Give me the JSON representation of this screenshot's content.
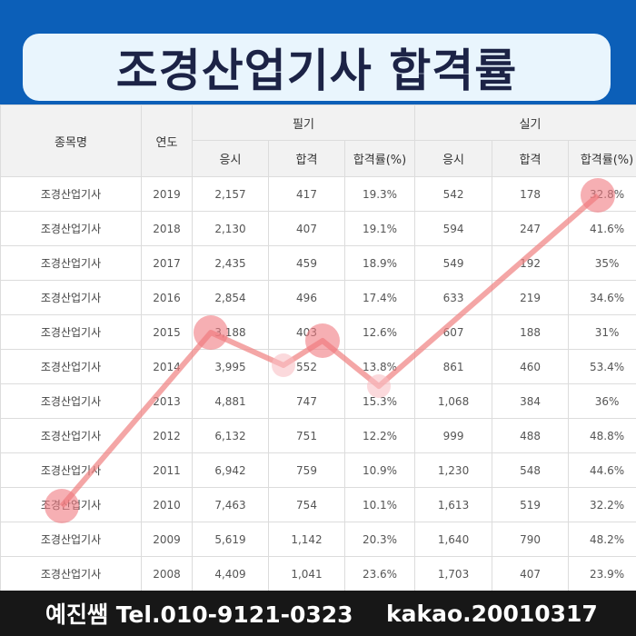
{
  "title": "조경산업기사 합격률",
  "table": {
    "col_name": "종목명",
    "col_year": "연도",
    "group_written": "필기",
    "group_practical": "실기",
    "sub_apply": "응시",
    "sub_pass": "합격",
    "sub_rate": "합격률(%)",
    "rows": [
      {
        "name": "조경산업기사",
        "year": "2019",
        "w_apply": "2,157",
        "w_pass": "417",
        "w_rate": "19.3%",
        "p_apply": "542",
        "p_pass": "178",
        "p_rate": "32.8%"
      },
      {
        "name": "조경산업기사",
        "year": "2018",
        "w_apply": "2,130",
        "w_pass": "407",
        "w_rate": "19.1%",
        "p_apply": "594",
        "p_pass": "247",
        "p_rate": "41.6%"
      },
      {
        "name": "조경산업기사",
        "year": "2017",
        "w_apply": "2,435",
        "w_pass": "459",
        "w_rate": "18.9%",
        "p_apply": "549",
        "p_pass": "192",
        "p_rate": "35%"
      },
      {
        "name": "조경산업기사",
        "year": "2016",
        "w_apply": "2,854",
        "w_pass": "496",
        "w_rate": "17.4%",
        "p_apply": "633",
        "p_pass": "219",
        "p_rate": "34.6%"
      },
      {
        "name": "조경산업기사",
        "year": "2015",
        "w_apply": "3,188",
        "w_pass": "403",
        "w_rate": "12.6%",
        "p_apply": "607",
        "p_pass": "188",
        "p_rate": "31%"
      },
      {
        "name": "조경산업기사",
        "year": "2014",
        "w_apply": "3,995",
        "w_pass": "552",
        "w_rate": "13.8%",
        "p_apply": "861",
        "p_pass": "460",
        "p_rate": "53.4%"
      },
      {
        "name": "조경산업기사",
        "year": "2013",
        "w_apply": "4,881",
        "w_pass": "747",
        "w_rate": "15.3%",
        "p_apply": "1,068",
        "p_pass": "384",
        "p_rate": "36%"
      },
      {
        "name": "조경산업기사",
        "year": "2012",
        "w_apply": "6,132",
        "w_pass": "751",
        "w_rate": "12.2%",
        "p_apply": "999",
        "p_pass": "488",
        "p_rate": "48.8%"
      },
      {
        "name": "조경산업기사",
        "year": "2011",
        "w_apply": "6,942",
        "w_pass": "759",
        "w_rate": "10.9%",
        "p_apply": "1,230",
        "p_pass": "548",
        "p_rate": "44.6%"
      },
      {
        "name": "조경산업기사",
        "year": "2010",
        "w_apply": "7,463",
        "w_pass": "754",
        "w_rate": "10.1%",
        "p_apply": "1,613",
        "p_pass": "519",
        "p_rate": "32.2%"
      },
      {
        "name": "조경산업기사",
        "year": "2009",
        "w_apply": "5,619",
        "w_pass": "1,142",
        "w_rate": "20.3%",
        "p_apply": "1,640",
        "p_pass": "790",
        "p_rate": "48.2%"
      },
      {
        "name": "조경산업기사",
        "year": "2008",
        "w_apply": "4,409",
        "w_pass": "1,041",
        "w_rate": "23.6%",
        "p_apply": "1,703",
        "p_pass": "407",
        "p_rate": "23.9%"
      }
    ]
  },
  "footer": {
    "left": "예진쌤 Tel.010-9121-0323",
    "right": "kakao.20010317"
  },
  "colors": {
    "header": "#0c5fb8",
    "title_bg": "#e9f5fd",
    "title_text": "#1c2346",
    "overlay_line": "#f08080",
    "footer_bg": "#171717"
  }
}
